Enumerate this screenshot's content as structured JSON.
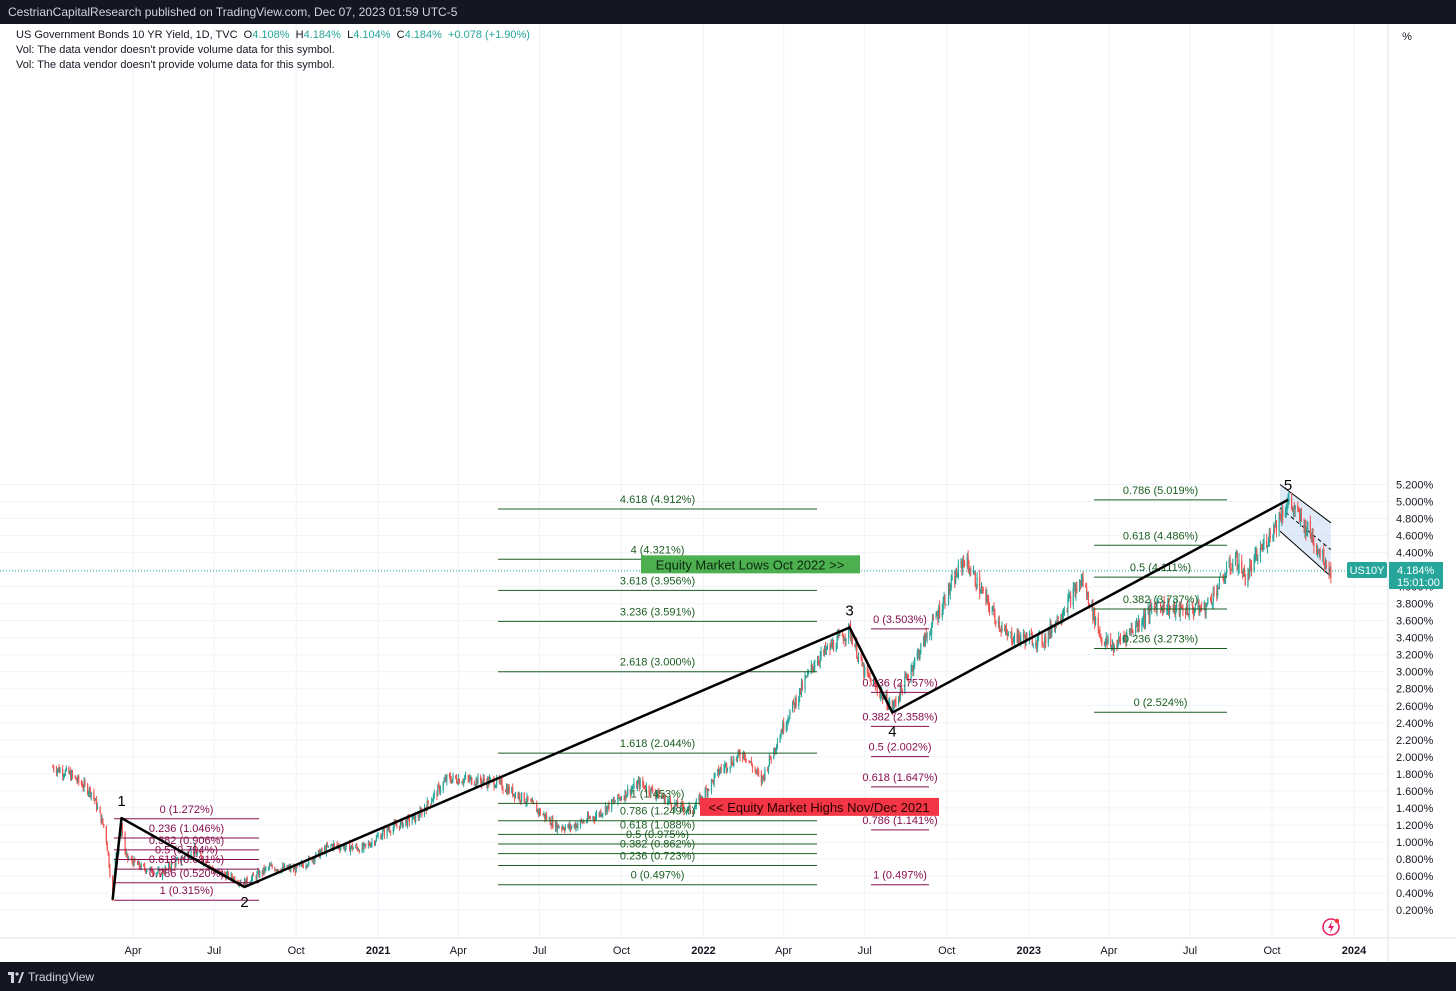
{
  "header": {
    "publisher": "CestrianCapitalResearch published on TradingView.com, Dec 07, 2023 01:59 UTC-5"
  },
  "legend": {
    "title": "US Government Bonds 10 YR Yield, 1D, TVC",
    "o_label": "O",
    "o_value": "4.108%",
    "h_label": "H",
    "h_value": "4.184%",
    "l_label": "L",
    "l_value": "4.104%",
    "c_label": "C",
    "c_value": "4.184%",
    "change": "+0.078 (+1.90%)",
    "vol1": "Vol: The data vendor doesn't provide volume data for this symbol.",
    "vol2": "Vol: The data vendor doesn't provide volume data for this symbol."
  },
  "scale_button": "%",
  "footer": {
    "brand": "TradingView"
  },
  "price_tag": {
    "symbol": "US10Y",
    "value": "4.184%",
    "countdown": "15:01:00"
  },
  "colors": {
    "up": "#26a69a",
    "down": "#ef5350",
    "fib_green": "#1b5e20",
    "fib_maroon": "#880e4f",
    "wave": "#000000",
    "channel_fill": "#c9dcf5",
    "banner_green": "#4caf50",
    "banner_red": "#f23645"
  },
  "chart_data": {
    "type": "candlestick",
    "symbol": "US10Y",
    "y_unit": "%",
    "ylim": [
      0.05,
      5.35
    ],
    "y_ticks": [
      "0.200%",
      "0.400%",
      "0.600%",
      "0.800%",
      "1.000%",
      "1.200%",
      "1.400%",
      "1.600%",
      "1.800%",
      "2.000%",
      "2.200%",
      "2.400%",
      "2.600%",
      "2.800%",
      "3.000%",
      "3.200%",
      "3.400%",
      "3.600%",
      "3.800%",
      "4.000%",
      "4.200%",
      "4.400%",
      "4.600%",
      "4.800%",
      "5.000%",
      "5.200%"
    ],
    "x_ticks": [
      {
        "label": "Apr",
        "date": "2020-04-01",
        "bold": false
      },
      {
        "label": "Jul",
        "date": "2020-07-01",
        "bold": false
      },
      {
        "label": "Oct",
        "date": "2020-10-01",
        "bold": false
      },
      {
        "label": "2021",
        "date": "2021-01-01",
        "bold": true
      },
      {
        "label": "Apr",
        "date": "2021-04-01",
        "bold": false
      },
      {
        "label": "Jul",
        "date": "2021-07-01",
        "bold": false
      },
      {
        "label": "Oct",
        "date": "2021-10-01",
        "bold": false
      },
      {
        "label": "2022",
        "date": "2022-01-01",
        "bold": true
      },
      {
        "label": "Apr",
        "date": "2022-04-01",
        "bold": false
      },
      {
        "label": "Jul",
        "date": "2022-07-01",
        "bold": false
      },
      {
        "label": "Oct",
        "date": "2022-10-01",
        "bold": false
      },
      {
        "label": "2023",
        "date": "2023-01-01",
        "bold": true
      },
      {
        "label": "Apr",
        "date": "2023-04-01",
        "bold": false
      },
      {
        "label": "Jul",
        "date": "2023-07-01",
        "bold": false
      },
      {
        "label": "Oct",
        "date": "2023-10-01",
        "bold": false
      },
      {
        "label": "2024",
        "date": "2024-01-01",
        "bold": true
      }
    ],
    "last_value": 4.184,
    "price_path": [
      [
        "2020-01-02",
        1.88
      ],
      [
        "2020-01-20",
        1.8
      ],
      [
        "2020-02-15",
        1.58
      ],
      [
        "2020-03-01",
        1.12
      ],
      [
        "2020-03-05",
        0.75
      ],
      [
        "2020-03-09",
        0.32
      ],
      [
        "2020-03-12",
        0.85
      ],
      [
        "2020-03-19",
        1.18
      ],
      [
        "2020-03-24",
        0.82
      ],
      [
        "2020-04-10",
        0.7
      ],
      [
        "2020-05-01",
        0.63
      ],
      [
        "2020-06-08",
        0.9
      ],
      [
        "2020-07-01",
        0.66
      ],
      [
        "2020-08-04",
        0.52
      ],
      [
        "2020-09-01",
        0.7
      ],
      [
        "2020-10-01",
        0.68
      ],
      [
        "2020-11-10",
        0.96
      ],
      [
        "2020-12-15",
        0.92
      ],
      [
        "2021-01-12",
        1.15
      ],
      [
        "2021-02-15",
        1.3
      ],
      [
        "2021-03-19",
        1.74
      ],
      [
        "2021-03-31",
        1.74
      ],
      [
        "2021-05-13",
        1.7
      ],
      [
        "2021-06-15",
        1.5
      ],
      [
        "2021-07-19",
        1.19
      ],
      [
        "2021-08-04",
        1.17
      ],
      [
        "2021-09-01",
        1.3
      ],
      [
        "2021-10-21",
        1.69
      ],
      [
        "2021-11-30",
        1.43
      ],
      [
        "2021-12-20",
        1.37
      ],
      [
        "2022-01-20",
        1.85
      ],
      [
        "2022-02-15",
        2.05
      ],
      [
        "2022-03-07",
        1.72
      ],
      [
        "2022-03-31",
        2.35
      ],
      [
        "2022-05-06",
        3.12
      ],
      [
        "2022-06-14",
        3.49
      ],
      [
        "2022-06-30",
        3.0
      ],
      [
        "2022-08-01",
        2.57
      ],
      [
        "2022-09-01",
        3.26
      ],
      [
        "2022-10-21",
        4.33
      ],
      [
        "2022-11-15",
        3.82
      ],
      [
        "2022-12-07",
        3.42
      ],
      [
        "2023-01-18",
        3.37
      ],
      [
        "2023-03-02",
        4.08
      ],
      [
        "2023-03-24",
        3.38
      ],
      [
        "2023-04-06",
        3.29
      ],
      [
        "2023-05-26",
        3.8
      ],
      [
        "2023-06-15",
        3.72
      ],
      [
        "2023-07-18",
        3.75
      ],
      [
        "2023-08-21",
        4.34
      ],
      [
        "2023-09-01",
        4.1
      ],
      [
        "2023-10-19",
        5.0
      ],
      [
        "2023-11-13",
        4.62
      ],
      [
        "2023-12-06",
        4.18
      ]
    ],
    "elliott_waves": [
      {
        "label": "1",
        "date": "2020-03-19",
        "value": 1.28
      },
      {
        "label": "2",
        "date": "2020-08-04",
        "value": 0.47
      },
      {
        "label": "3",
        "date": "2022-06-14",
        "value": 3.52
      },
      {
        "label": "4",
        "date": "2022-08-01",
        "value": 2.52
      },
      {
        "label": "5",
        "date": "2023-10-19",
        "value": 5.02
      }
    ],
    "wave_start": {
      "date": "2020-03-09",
      "value": 0.32
    },
    "fib_retracement_w2": [
      {
        "label": "0 (1.272%)",
        "value": 1.272
      },
      {
        "label": "0.236 (1.046%)",
        "value": 1.046
      },
      {
        "label": "0.382 (0.906%)",
        "value": 0.906
      },
      {
        "label": "0.5 (0.794%)",
        "value": 0.794
      },
      {
        "label": "0.618 (0.681%)",
        "value": 0.681
      },
      {
        "label": "0.786 (0.520%)",
        "value": 0.52
      },
      {
        "label": "1 (0.315%)",
        "value": 0.315
      }
    ],
    "fib_extension_w3": [
      {
        "label": "4.618 (4.912%)",
        "value": 4.912
      },
      {
        "label": "4 (4.321%)",
        "value": 4.321
      },
      {
        "label": "3.618 (3.956%)",
        "value": 3.956
      },
      {
        "label": "3.236 (3.591%)",
        "value": 3.591
      },
      {
        "label": "2.618 (3.000%)",
        "value": 3.0
      },
      {
        "label": "1.618 (2.044%)",
        "value": 2.044
      },
      {
        "label": "1 (1.453%)",
        "value": 1.453
      },
      {
        "label": "0.786 (1.249%)",
        "value": 1.249
      },
      {
        "label": "0.618 (1.088%)",
        "value": 1.088
      },
      {
        "label": "0.5 (0.975%)",
        "value": 0.975
      },
      {
        "label": "0.382 (0.862%)",
        "value": 0.862
      },
      {
        "label": "0.236 (0.723%)",
        "value": 0.723
      },
      {
        "label": "0 (0.497%)",
        "value": 0.497
      }
    ],
    "fib_retracement_w4": [
      {
        "label": "0 (3.503%)",
        "value": 3.503
      },
      {
        "label": "0.236 (2.757%)",
        "value": 2.757
      },
      {
        "label": "0.382 (2.358%)",
        "value": 2.358
      },
      {
        "label": "0.5 (2.002%)",
        "value": 2.002
      },
      {
        "label": "0.618 (1.647%)",
        "value": 1.647
      },
      {
        "label": "0.786 (1.141%)",
        "value": 1.141
      },
      {
        "label": "1 (0.497%)",
        "value": 0.497
      }
    ],
    "fib_extension_w5": [
      {
        "label": "0.786 (5.019%)",
        "value": 5.019
      },
      {
        "label": "0.618 (4.486%)",
        "value": 4.486
      },
      {
        "label": "0.5 (4.111%)",
        "value": 4.111
      },
      {
        "label": "0.382 (3.737%)",
        "value": 3.737
      },
      {
        "label": "0.236 (3.273%)",
        "value": 3.273
      },
      {
        "label": "0 (2.524%)",
        "value": 2.524
      }
    ],
    "annotations": [
      {
        "text": "Equity Market Lows Oct 2022 >>",
        "value": 4.25,
        "color": "green"
      },
      {
        "text": "<< Equity Market Highs Nov/Dec 2021",
        "value": 1.4,
        "color": "red"
      }
    ],
    "channel": {
      "start": "2023-10-19",
      "end": "2023-12-06",
      "upper_start": 5.2,
      "upper_end": 4.75,
      "lower_start": 4.65,
      "lower_end": 4.12
    }
  }
}
